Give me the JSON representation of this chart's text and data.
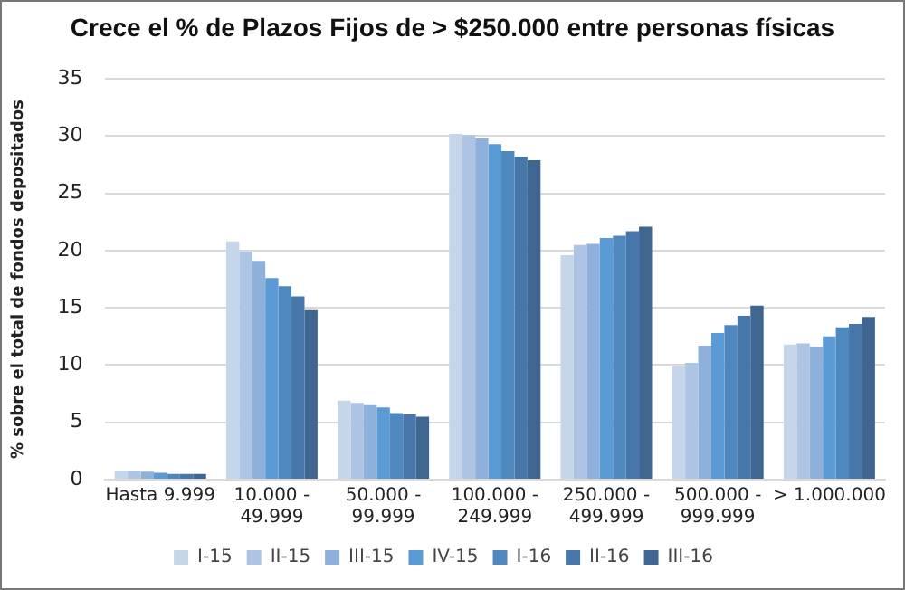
{
  "chart_data": {
    "type": "bar",
    "title": "Crece el % de Plazos Fijos de > $250.000 entre personas físicas",
    "ylabel": "% sobre el total de fondos depositados",
    "categories": [
      "Hasta 9.999",
      "10.000 - 49.999",
      "50.000 - 99.999",
      "100.000 - 249.999",
      "250.000 - 499.999",
      "500.000 - 999.999",
      "> 1.000.000"
    ],
    "series": [
      {
        "name": "I-15",
        "color": "#c5d5ea",
        "values": [
          0.8,
          20.8,
          6.9,
          30.2,
          19.6,
          9.9,
          11.8
        ]
      },
      {
        "name": "II-15",
        "color": "#adc4e5",
        "values": [
          0.8,
          19.9,
          6.7,
          30.1,
          20.5,
          10.2,
          11.9
        ]
      },
      {
        "name": "III-15",
        "color": "#8eb1dc",
        "values": [
          0.7,
          19.1,
          6.5,
          29.8,
          20.6,
          11.7,
          11.6
        ]
      },
      {
        "name": "IV-15",
        "color": "#5b9bd5",
        "values": [
          0.6,
          17.6,
          6.3,
          29.3,
          21.1,
          12.8,
          12.5
        ]
      },
      {
        "name": "I-16",
        "color": "#4f88bf",
        "values": [
          0.5,
          16.9,
          5.8,
          28.7,
          21.3,
          13.5,
          13.3
        ]
      },
      {
        "name": "II-16",
        "color": "#4676aa",
        "values": [
          0.5,
          16.0,
          5.7,
          28.2,
          21.7,
          14.3,
          13.6
        ]
      },
      {
        "name": "III-16",
        "color": "#3f6591",
        "values": [
          0.5,
          14.8,
          5.5,
          27.9,
          22.1,
          15.2,
          14.2
        ]
      }
    ],
    "ylim": [
      0,
      35
    ],
    "yticks": [
      0,
      5,
      10,
      15,
      20,
      25,
      30,
      35
    ],
    "grid": "y",
    "legend": "bottom"
  }
}
